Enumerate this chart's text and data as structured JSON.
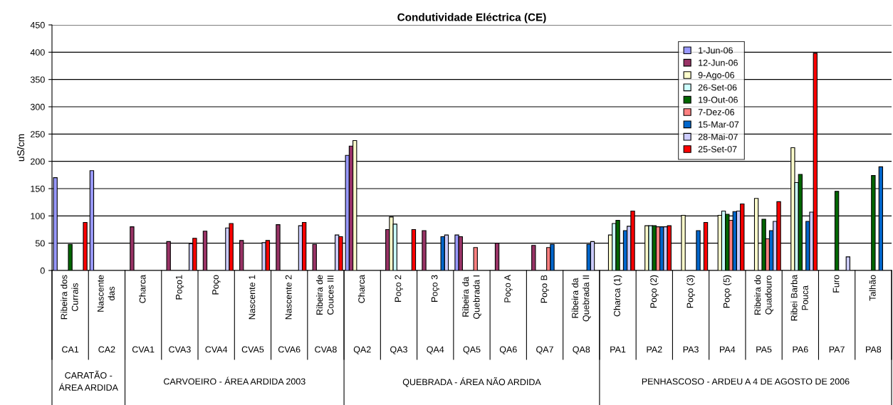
{
  "chart_data": {
    "type": "bar",
    "title": "Condutividade Eléctrica (CE)",
    "ylabel": "uS/cm",
    "categories": [
      "Ribeira dos\nCurrais",
      "Nascente\ndas",
      "Charca",
      "Poço1",
      "Poço",
      "Nascente 1",
      "Nascente 2",
      "Ribeira de\nCouces III",
      "Charca",
      "Poço 2",
      "Poço 3",
      "Ribeira da\nQuebrada I",
      "Poço A",
      "Poço B",
      "Ribeira da\nQuebrada II",
      "Charca (1)",
      "Poço (2)",
      "Poço (3)",
      "Poço (5)",
      "Ribeira do\nQuadouro",
      "Ribei Barba\nPouca",
      "Furo",
      "Talhão"
    ],
    "annotations": [
      "CA1",
      "CA2",
      "CVA1",
      "CVA3",
      "CVA4",
      "CVA5",
      "CVA6",
      "CVA8",
      "QA2",
      "QA3",
      "QA4",
      "QA5",
      "QA6",
      "QA7",
      "QA8",
      "PA1",
      "PA2",
      "PA3",
      "PA4",
      "PA5",
      "PA6",
      "PA7",
      "PA8",
      "CARATÃO -\nÁREA ARDIDA",
      "CARVOEIRO - ÁREA ARDIDA 2003",
      "QUEBRADA - ÁREA NÃO ARDIDA",
      "PENHASCOSO - ARDEU A 4 DE AGOSTO DE 2006"
    ],
    "series": [
      {
        "name": "1-Jun-06",
        "color": "#9999ff",
        "values": [
          170,
          183,
          null,
          null,
          null,
          null,
          null,
          null,
          211,
          null,
          null,
          65,
          null,
          null,
          null,
          null,
          null,
          null,
          null,
          null,
          null,
          null,
          null
        ]
      },
      {
        "name": "12-Jun-06",
        "color": "#993366",
        "values": [
          null,
          null,
          80,
          53,
          72,
          55,
          84,
          48,
          228,
          75,
          73,
          62,
          50,
          46,
          null,
          null,
          null,
          null,
          null,
          null,
          null,
          null,
          null
        ]
      },
      {
        "name": "9-Ago-06",
        "color": "#ffffcc",
        "values": [
          null,
          null,
          null,
          null,
          null,
          null,
          null,
          null,
          238,
          98,
          null,
          null,
          null,
          null,
          null,
          65,
          82,
          101,
          101,
          132,
          225,
          null,
          null
        ]
      },
      {
        "name": "26-Set-06",
        "color": "#ccffff",
        "values": [
          null,
          null,
          null,
          null,
          null,
          null,
          null,
          null,
          null,
          85,
          null,
          null,
          null,
          null,
          null,
          86,
          82,
          null,
          109,
          null,
          161,
          null,
          null
        ]
      },
      {
        "name": "19-Out-06",
        "color": "#006600",
        "values": [
          48,
          null,
          null,
          null,
          null,
          null,
          null,
          null,
          null,
          null,
          null,
          null,
          null,
          null,
          null,
          92,
          82,
          null,
          103,
          94,
          176,
          145,
          174
        ]
      },
      {
        "name": "7-Dez-06",
        "color": "#ff8080",
        "values": [
          null,
          null,
          null,
          null,
          null,
          null,
          null,
          null,
          null,
          null,
          null,
          42,
          null,
          42,
          null,
          null,
          80,
          null,
          92,
          58,
          null,
          null,
          null
        ]
      },
      {
        "name": "15-Mar-07",
        "color": "#0066cc",
        "values": [
          null,
          null,
          null,
          null,
          null,
          null,
          null,
          null,
          null,
          null,
          62,
          null,
          null,
          48,
          48,
          73,
          80,
          73,
          108,
          73,
          90,
          null,
          190
        ]
      },
      {
        "name": "28-Mai-07",
        "color": "#ccccff",
        "values": [
          null,
          null,
          null,
          49,
          78,
          51,
          82,
          65,
          null,
          null,
          65,
          null,
          null,
          null,
          53,
          81,
          80,
          null,
          109,
          90,
          107,
          25,
          null
        ]
      },
      {
        "name": "25-Set-07",
        "color": "#ff0000",
        "values": [
          88,
          null,
          null,
          59,
          86,
          55,
          88,
          62,
          null,
          75,
          null,
          null,
          null,
          null,
          null,
          109,
          82,
          88,
          122,
          126,
          398,
          null,
          null
        ]
      }
    ],
    "ylim": [
      0,
      450
    ],
    "yticks": [
      0,
      50,
      100,
      150,
      200,
      250,
      300,
      350,
      400,
      450
    ],
    "grid": "y",
    "legend": "top right"
  }
}
